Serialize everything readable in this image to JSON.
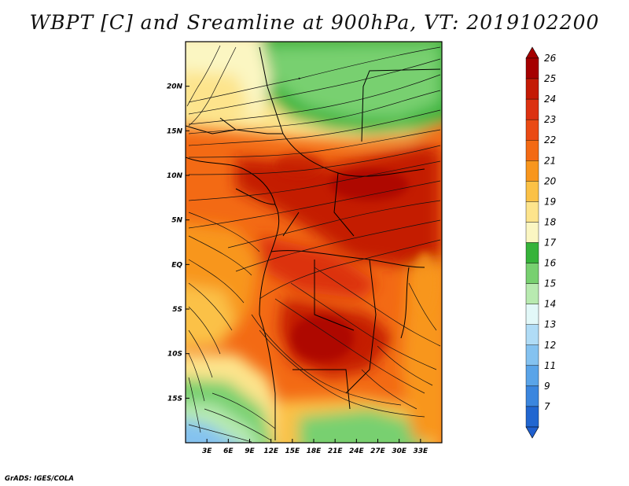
{
  "title": "WBPT [C] and Sreamline at 900hPa, VT: 2019102200",
  "footer": "GrADS: IGES/COLA",
  "map": {
    "lon_range": [
      0,
      36
    ],
    "lat_range": [
      -20,
      25
    ],
    "lon_ticks": [
      {
        "value": 3,
        "label": "3E"
      },
      {
        "value": 6,
        "label": "6E"
      },
      {
        "value": 9,
        "label": "9E"
      },
      {
        "value": 12,
        "label": "12E"
      },
      {
        "value": 15,
        "label": "15E"
      },
      {
        "value": 18,
        "label": "18E"
      },
      {
        "value": 21,
        "label": "21E"
      },
      {
        "value": 24,
        "label": "24E"
      },
      {
        "value": 27,
        "label": "27E"
      },
      {
        "value": 30,
        "label": "30E"
      },
      {
        "value": 33,
        "label": "33E"
      }
    ],
    "lat_ticks": [
      {
        "value": 20,
        "label": "20N"
      },
      {
        "value": 15,
        "label": "15N"
      },
      {
        "value": 10,
        "label": "10N"
      },
      {
        "value": 5,
        "label": "5N"
      },
      {
        "value": 0,
        "label": "EQ"
      },
      {
        "value": -5,
        "label": "5S"
      },
      {
        "value": -10,
        "label": "10S"
      },
      {
        "value": -15,
        "label": "15S"
      }
    ]
  },
  "colorbar": {
    "levels": [
      {
        "label": "26",
        "color": "#a50000"
      },
      {
        "label": "25",
        "color": "#c41a05"
      },
      {
        "label": "24",
        "color": "#dc3110"
      },
      {
        "label": "23",
        "color": "#ea4a14"
      },
      {
        "label": "22",
        "color": "#f36a14"
      },
      {
        "label": "21",
        "color": "#f8961d"
      },
      {
        "label": "20",
        "color": "#fbc146"
      },
      {
        "label": "19",
        "color": "#fde48c"
      },
      {
        "label": "18",
        "color": "#fbf6c2"
      },
      {
        "label": "17",
        "color": "#36b33a"
      },
      {
        "label": "16",
        "color": "#78d070"
      },
      {
        "label": "15",
        "color": "#b8eab0"
      },
      {
        "label": "14",
        "color": "#e2f8f8"
      },
      {
        "label": "13",
        "color": "#b0dcf6"
      },
      {
        "label": "12",
        "color": "#84c2f0"
      },
      {
        "label": "11",
        "color": "#5aa4e8"
      },
      {
        "label": "9",
        "color": "#3b86de"
      },
      {
        "label": "7",
        "color": "#2166d0"
      }
    ],
    "top_color": "#a50000",
    "bottom_color": "#1f5fce"
  }
}
